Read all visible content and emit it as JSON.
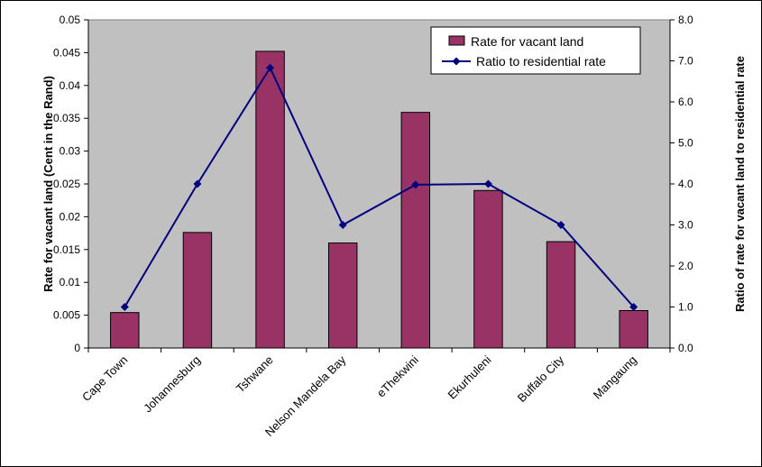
{
  "chart_data": {
    "type": "bar",
    "categories": [
      "Cape Town",
      "Johannesburg",
      "Tshwane",
      "Nelson Mandela Bay",
      "eThekwini",
      "Ekurhuleni",
      "Buffalo City",
      "Mangaung"
    ],
    "series": [
      {
        "name": "Rate for vacant land",
        "type": "bar",
        "axis": "left",
        "color": "#993366",
        "values": [
          0.0054,
          0.0176,
          0.0452,
          0.016,
          0.0359,
          0.024,
          0.0162,
          0.0057
        ]
      },
      {
        "name": "Ratio to residential rate",
        "type": "line",
        "axis": "right",
        "color": "#000080",
        "marker": "diamond",
        "values": [
          1.0,
          4.0,
          6.83,
          3.0,
          3.98,
          4.0,
          3.0,
          1.0
        ]
      }
    ],
    "ylabel": "Rate for vacant land (Cent in the Rand)",
    "y2label": "Ratio of rate for vacant land to residential rate",
    "ylim": [
      0,
      0.05
    ],
    "y2lim": [
      0,
      8.0
    ],
    "yticks": [
      "0",
      "0.005",
      "0.01",
      "0.015",
      "0.02",
      "0.025",
      "0.03",
      "0.035",
      "0.04",
      "0.045",
      "0.05"
    ],
    "y2ticks": [
      "0.0",
      "1.0",
      "2.0",
      "3.0",
      "4.0",
      "5.0",
      "6.0",
      "7.0",
      "8.0"
    ],
    "legend_position": "top-right",
    "plot_background": "#c0c0c0",
    "grid": false
  }
}
